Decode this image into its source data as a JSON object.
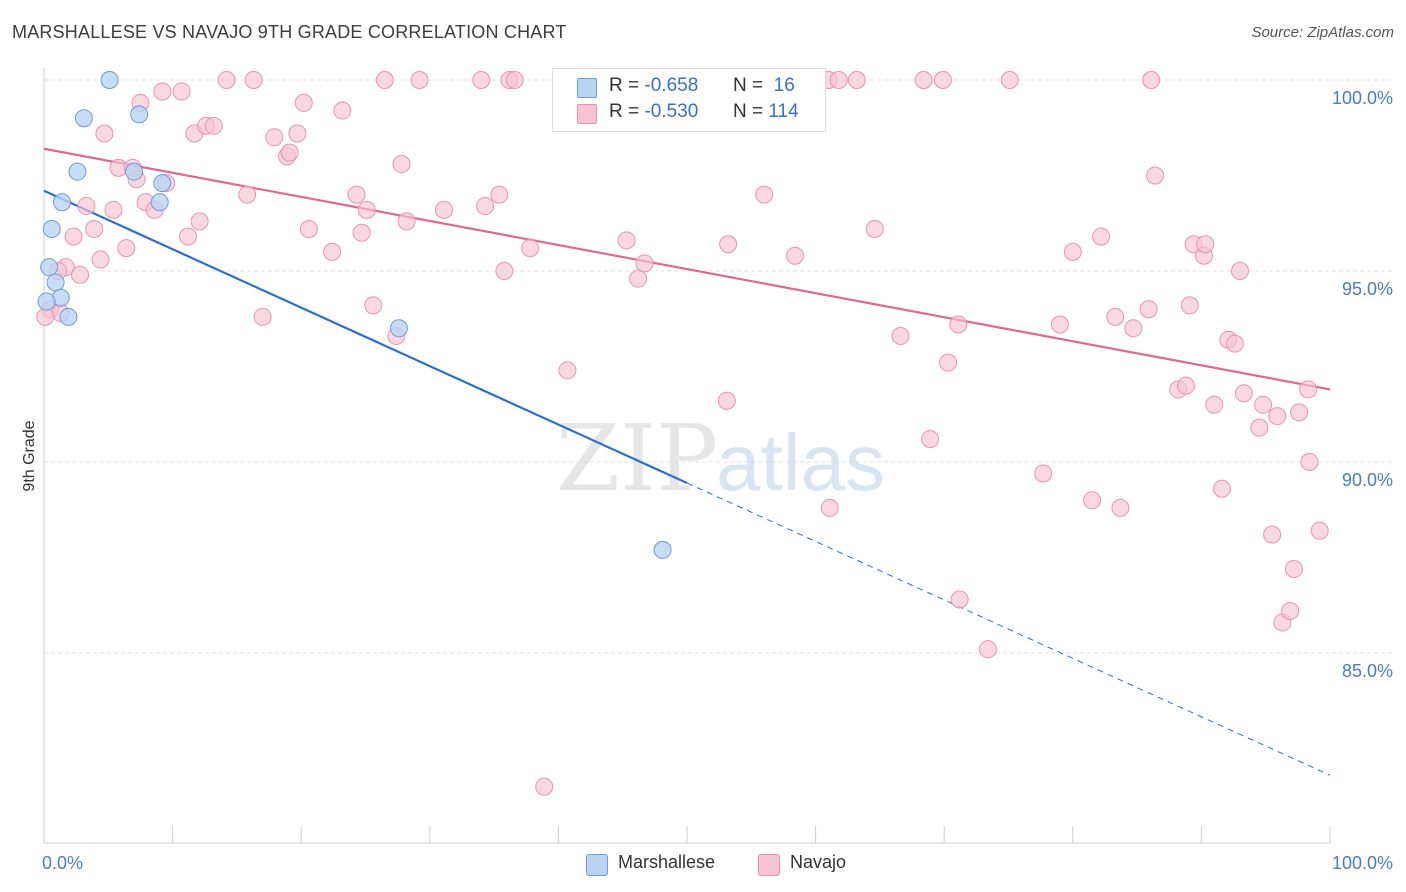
{
  "title": "MARSHALLESE VS NAVAJO 9TH GRADE CORRELATION CHART",
  "source": "Source: ZipAtlas.com",
  "watermark": {
    "zip": "ZIP",
    "atlas": "atlas"
  },
  "legend": {
    "rows": [
      {
        "r_label": "R =",
        "r_value": "-0.658",
        "n_label": "N =",
        "n_value": "16"
      },
      {
        "r_label": "R =",
        "r_value": "-0.530",
        "n_label": "N =",
        "n_value": "114"
      }
    ]
  },
  "colors": {
    "marshallese_fill": "#b9d3f3",
    "marshallese_stroke": "#6f9bd8",
    "marshallese_line": "#2a6fd1",
    "navajo_fill": "#f7c3d2",
    "navajo_stroke": "#ea93ae",
    "navajo_line": "#e06790",
    "tick_text": "#4a7cc4",
    "grid": "#e2e2e2"
  },
  "chart_data": {
    "type": "scatter",
    "title": "MARSHALLESE VS NAVAJO 9TH GRADE CORRELATION CHART",
    "xlabel": "",
    "ylabel": "9th Grade",
    "xlim": [
      0,
      100
    ],
    "ylim": [
      80.0,
      101.5
    ],
    "x_tick_labels": [
      "0.0%",
      "100.0%"
    ],
    "y_ticks": [
      85,
      90,
      95,
      100
    ],
    "y_tick_labels": [
      "85.0%",
      "90.0%",
      "95.0%",
      "100.0%"
    ],
    "grid": true,
    "legend_position": "bottom-center",
    "series": [
      {
        "name": "Marshallese",
        "r": -0.658,
        "n": 16,
        "trend": {
          "x0": 0,
          "y0": 97.1,
          "x1": 100,
          "y1": 81.8,
          "solid_until_x": 50
        },
        "points": [
          [
            0.4,
            95.1
          ],
          [
            0.6,
            96.1
          ],
          [
            0.9,
            94.7
          ],
          [
            1.3,
            94.3
          ],
          [
            1.4,
            96.8
          ],
          [
            1.9,
            93.8
          ],
          [
            2.6,
            97.6
          ],
          [
            3.1,
            99.0
          ],
          [
            5.1,
            100.0
          ],
          [
            7.0,
            97.6
          ],
          [
            7.4,
            99.1
          ],
          [
            9.0,
            96.8
          ],
          [
            9.2,
            97.3
          ],
          [
            27.6,
            93.5
          ],
          [
            48.1,
            87.7
          ],
          [
            0.2,
            94.2
          ]
        ]
      },
      {
        "name": "Navajo",
        "r": -0.53,
        "n": 114,
        "trend": {
          "x0": 0,
          "y0": 98.2,
          "x1": 100,
          "y1": 91.9
        },
        "points": [
          [
            0.5,
            94.0
          ],
          [
            1.3,
            93.9
          ],
          [
            1.7,
            95.1
          ],
          [
            2.3,
            95.9
          ],
          [
            2.8,
            94.9
          ],
          [
            3.3,
            96.7
          ],
          [
            3.9,
            96.1
          ],
          [
            4.4,
            95.3
          ],
          [
            4.7,
            98.6
          ],
          [
            5.4,
            96.6
          ],
          [
            5.8,
            97.7
          ],
          [
            6.4,
            95.6
          ],
          [
            6.9,
            97.7
          ],
          [
            7.2,
            97.4
          ],
          [
            7.5,
            99.4
          ],
          [
            7.9,
            96.8
          ],
          [
            8.6,
            96.6
          ],
          [
            9.2,
            99.7
          ],
          [
            9.5,
            97.3
          ],
          [
            10.7,
            99.7
          ],
          [
            11.2,
            95.9
          ],
          [
            11.7,
            98.6
          ],
          [
            12.1,
            96.3
          ],
          [
            12.6,
            98.8
          ],
          [
            13.2,
            98.8
          ],
          [
            14.2,
            100.0
          ],
          [
            15.8,
            97.0
          ],
          [
            16.3,
            100.0
          ],
          [
            17.0,
            93.8
          ],
          [
            17.9,
            98.5
          ],
          [
            18.9,
            98.0
          ],
          [
            19.1,
            98.1
          ],
          [
            19.7,
            98.6
          ],
          [
            20.2,
            99.4
          ],
          [
            20.6,
            96.1
          ],
          [
            22.4,
            95.5
          ],
          [
            23.2,
            99.2
          ],
          [
            24.3,
            97.0
          ],
          [
            24.7,
            96.0
          ],
          [
            25.1,
            96.6
          ],
          [
            25.6,
            94.1
          ],
          [
            26.5,
            100.0
          ],
          [
            27.4,
            93.3
          ],
          [
            27.8,
            97.8
          ],
          [
            28.2,
            96.3
          ],
          [
            29.2,
            100.0
          ],
          [
            31.1,
            96.6
          ],
          [
            34.0,
            100.0
          ],
          [
            34.3,
            96.7
          ],
          [
            35.4,
            97.0
          ],
          [
            35.8,
            95.0
          ],
          [
            36.2,
            100.0
          ],
          [
            36.6,
            100.0
          ],
          [
            37.8,
            95.6
          ],
          [
            40.7,
            92.4
          ],
          [
            45.3,
            95.8
          ],
          [
            46.2,
            94.8
          ],
          [
            46.7,
            95.2
          ],
          [
            52.2,
            100.0
          ],
          [
            53.1,
            91.6
          ],
          [
            53.2,
            95.7
          ],
          [
            56.0,
            97.0
          ],
          [
            58.4,
            95.4
          ],
          [
            61.0,
            100.0
          ],
          [
            61.1,
            88.8
          ],
          [
            61.8,
            100.0
          ],
          [
            63.2,
            100.0
          ],
          [
            64.6,
            96.1
          ],
          [
            66.6,
            93.3
          ],
          [
            68.4,
            100.0
          ],
          [
            68.9,
            90.6
          ],
          [
            69.9,
            100.0
          ],
          [
            70.3,
            92.6
          ],
          [
            71.1,
            93.6
          ],
          [
            71.2,
            86.4
          ],
          [
            73.4,
            85.1
          ],
          [
            75.1,
            100.0
          ],
          [
            77.7,
            89.7
          ],
          [
            79.0,
            93.6
          ],
          [
            80.0,
            95.5
          ],
          [
            81.5,
            89.0
          ],
          [
            82.2,
            95.9
          ],
          [
            83.3,
            93.8
          ],
          [
            83.7,
            88.8
          ],
          [
            84.7,
            93.5
          ],
          [
            85.9,
            94.0
          ],
          [
            86.1,
            100.0
          ],
          [
            86.4,
            97.5
          ],
          [
            88.2,
            91.9
          ],
          [
            88.8,
            92.0
          ],
          [
            89.1,
            94.1
          ],
          [
            89.4,
            95.7
          ],
          [
            90.2,
            95.4
          ],
          [
            90.3,
            95.7
          ],
          [
            91.0,
            91.5
          ],
          [
            91.6,
            89.3
          ],
          [
            92.1,
            93.2
          ],
          [
            92.6,
            93.1
          ],
          [
            93.0,
            95.0
          ],
          [
            93.3,
            91.8
          ],
          [
            94.5,
            90.9
          ],
          [
            94.8,
            91.5
          ],
          [
            95.5,
            88.1
          ],
          [
            95.9,
            91.2
          ],
          [
            96.3,
            85.8
          ],
          [
            96.9,
            86.1
          ],
          [
            97.2,
            87.2
          ],
          [
            97.6,
            91.3
          ],
          [
            98.3,
            91.9
          ],
          [
            98.4,
            90.0
          ],
          [
            99.2,
            88.2
          ],
          [
            0.1,
            93.8
          ],
          [
            1.1,
            95.0
          ],
          [
            38.9,
            81.5
          ]
        ]
      }
    ]
  },
  "bottom_legend": {
    "items": [
      "Marshallese",
      "Navajo"
    ]
  }
}
